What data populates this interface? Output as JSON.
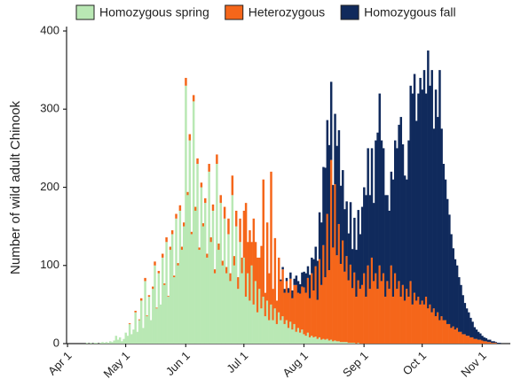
{
  "chart_data": {
    "type": "stacked_bar",
    "y_label": "Number of wild adult Chinook",
    "categories": [
      "Apr 1",
      null,
      null,
      null,
      null,
      null,
      null,
      null,
      null,
      null,
      null,
      null,
      null,
      null,
      null,
      null,
      null,
      null,
      null,
      null,
      null,
      null,
      null,
      null,
      null,
      null,
      null,
      null,
      null,
      null,
      "May 1",
      null,
      null,
      null,
      null,
      null,
      null,
      null,
      null,
      null,
      null,
      null,
      null,
      null,
      null,
      null,
      null,
      null,
      null,
      null,
      null,
      null,
      null,
      null,
      null,
      null,
      null,
      null,
      null,
      null,
      null,
      "Jun 1",
      null,
      null,
      null,
      null,
      null,
      null,
      null,
      null,
      null,
      null,
      null,
      null,
      null,
      null,
      null,
      null,
      null,
      null,
      null,
      null,
      null,
      null,
      null,
      null,
      null,
      null,
      null,
      null,
      null,
      "Jul 1",
      null,
      null,
      null,
      null,
      null,
      null,
      null,
      null,
      null,
      null,
      null,
      null,
      null,
      null,
      null,
      null,
      null,
      null,
      null,
      null,
      null,
      null,
      null,
      null,
      null,
      null,
      null,
      null,
      null,
      null,
      "Aug 1",
      null,
      null,
      null,
      null,
      null,
      null,
      null,
      null,
      null,
      null,
      null,
      null,
      null,
      null,
      null,
      null,
      null,
      null,
      null,
      null,
      null,
      null,
      null,
      null,
      null,
      null,
      null,
      null,
      null,
      null,
      "Sep 1",
      null,
      null,
      null,
      null,
      null,
      null,
      null,
      null,
      null,
      null,
      null,
      null,
      null,
      null,
      null,
      null,
      null,
      null,
      null,
      null,
      null,
      null,
      null,
      null,
      null,
      null,
      null,
      null,
      null,
      "Oct 1",
      null,
      null,
      null,
      null,
      null,
      null,
      null,
      null,
      null,
      null,
      null,
      null,
      null,
      null,
      null,
      null,
      null,
      null,
      null,
      null,
      null,
      null,
      null,
      null,
      null,
      null,
      null,
      null,
      null,
      null,
      "Nov 1",
      null,
      null,
      null,
      null,
      null,
      null,
      null,
      null,
      null,
      null,
      null,
      null,
      null,
      null
    ],
    "series": [
      {
        "name": "Homozygous spring",
        "color": "#b9e8b4",
        "values": [
          0,
          0,
          0,
          0,
          0,
          0,
          0,
          0,
          0,
          0,
          1,
          0,
          1,
          0,
          1,
          1,
          0,
          1,
          2,
          1,
          2,
          1,
          3,
          2,
          4,
          10,
          5,
          8,
          3,
          6,
          14,
          10,
          25,
          12,
          18,
          40,
          15,
          30,
          55,
          20,
          80,
          35,
          60,
          30,
          70,
          100,
          45,
          90,
          50,
          110,
          75,
          130,
          60,
          120,
          140,
          85,
          160,
          100,
          170,
          120,
          150,
          330,
          190,
          260,
          140,
          310,
          170,
          230,
          120,
          200,
          150,
          180,
          110,
          220,
          130,
          170,
          90,
          230,
          120,
          180,
          100,
          160,
          90,
          140,
          80,
          190,
          100,
          150,
          70,
          130,
          90,
          110,
          60,
          90,
          55,
          100,
          50,
          80,
          40,
          70,
          45,
          60,
          35,
          55,
          30,
          50,
          30,
          45,
          25,
          40,
          30,
          35,
          25,
          30,
          20,
          28,
          18,
          25,
          15,
          20,
          14,
          18,
          12,
          10,
          14,
          8,
          10,
          8,
          9,
          6,
          8,
          5,
          6,
          5,
          6,
          4,
          5,
          3,
          4,
          3,
          3,
          2,
          2,
          2,
          2,
          1,
          1,
          1,
          1,
          0,
          1,
          0,
          0,
          0,
          0,
          0,
          0,
          0,
          0,
          0,
          0,
          0,
          0,
          0,
          0,
          0,
          0,
          0,
          0,
          0,
          0,
          0,
          0,
          0,
          0,
          0,
          0,
          0,
          0,
          0,
          0,
          0,
          0,
          0,
          0,
          0,
          0,
          0,
          0,
          0,
          0,
          0,
          0,
          0,
          0,
          0,
          0,
          0,
          0,
          0,
          0,
          0,
          0,
          0,
          0,
          0,
          0,
          0,
          0,
          0,
          0,
          0,
          0,
          0,
          0,
          0,
          0,
          0,
          0,
          0,
          0,
          0,
          0,
          0,
          0,
          0,
          0,
          0,
          0
        ]
      },
      {
        "name": "Heterozygous",
        "color": "#f5661a",
        "values": [
          0,
          0,
          0,
          0,
          0,
          0,
          0,
          0,
          0,
          0,
          0,
          0,
          0,
          0,
          0,
          0,
          0,
          0,
          0,
          0,
          0,
          0,
          0,
          0,
          0,
          0,
          0,
          0,
          0,
          0,
          0,
          0,
          1,
          0,
          0,
          2,
          0,
          1,
          3,
          0,
          4,
          1,
          2,
          0,
          3,
          5,
          1,
          3,
          0,
          5,
          2,
          6,
          1,
          4,
          5,
          2,
          6,
          3,
          7,
          4,
          5,
          10,
          4,
          8,
          3,
          8,
          5,
          7,
          3,
          6,
          4,
          6,
          5,
          10,
          6,
          8,
          5,
          12,
          8,
          10,
          6,
          15,
          8,
          20,
          10,
          25,
          12,
          20,
          15,
          30,
          20,
          60,
          120,
          40,
          90,
          30,
          110,
          50,
          70,
          40,
          80,
          150,
          30,
          100,
          60,
          170,
          40,
          90,
          30,
          70,
          50,
          60,
          40,
          50,
          45,
          55,
          40,
          50,
          60,
          45,
          50,
          55,
          60,
          55,
          70,
          50,
          80,
          60,
          90,
          50,
          100,
          70,
          120,
          80,
          160,
          90,
          230,
          120,
          200,
          110,
          150,
          100,
          130,
          90,
          110,
          80,
          100,
          70,
          90,
          60,
          80,
          70,
          75,
          90,
          60,
          100,
          70,
          110,
          80,
          90,
          70,
          100,
          80,
          90,
          60,
          80,
          70,
          100,
          60,
          90,
          70,
          80,
          60,
          75,
          55,
          70,
          60,
          80,
          50,
          65,
          55,
          60,
          50,
          55,
          50,
          60,
          45,
          50,
          40,
          45,
          35,
          40,
          30,
          35,
          30,
          30,
          25,
          25,
          20,
          22,
          18,
          20,
          15,
          15,
          12,
          12,
          10,
          10,
          8,
          8,
          6,
          6,
          5,
          5,
          4,
          3,
          3,
          2,
          2,
          1,
          1,
          1,
          0,
          0,
          0,
          0,
          0,
          0,
          0
        ]
      },
      {
        "name": "Homozygous fall",
        "color": "#102a5c",
        "values": [
          0,
          0,
          0,
          0,
          0,
          0,
          0,
          0,
          0,
          0,
          0,
          0,
          0,
          0,
          0,
          0,
          0,
          0,
          0,
          0,
          0,
          0,
          0,
          0,
          0,
          0,
          0,
          0,
          0,
          0,
          0,
          0,
          0,
          0,
          0,
          0,
          0,
          0,
          0,
          0,
          0,
          0,
          0,
          0,
          0,
          0,
          0,
          0,
          0,
          0,
          0,
          0,
          0,
          0,
          0,
          0,
          0,
          0,
          0,
          0,
          0,
          0,
          0,
          0,
          0,
          0,
          0,
          0,
          0,
          0,
          0,
          0,
          0,
          0,
          0,
          0,
          0,
          0,
          0,
          0,
          0,
          0,
          0,
          0,
          0,
          0,
          0,
          0,
          0,
          0,
          0,
          0,
          0,
          0,
          0,
          0,
          0,
          0,
          0,
          0,
          0,
          0,
          0,
          0,
          0,
          0,
          0,
          0,
          0,
          0,
          2,
          3,
          5,
          4,
          6,
          8,
          10,
          8,
          12,
          15,
          12,
          18,
          20,
          25,
          15,
          30,
          20,
          40,
          25,
          50,
          60,
          80,
          100,
          140,
          120,
          160,
          100,
          80,
          90,
          140,
          120,
          100,
          90,
          80,
          70,
          60,
          80,
          50,
          70,
          60,
          90,
          70,
          100,
          110,
          130,
          150,
          120,
          140,
          100,
          170,
          200,
          220,
          180,
          160,
          130,
          110,
          100,
          120,
          150,
          170,
          180,
          200,
          230,
          180,
          160,
          140,
          200,
          250,
          270,
          280,
          230,
          260,
          290,
          270,
          300,
          260,
          330,
          280,
          310,
          230,
          290,
          250,
          320,
          240,
          200,
          180,
          160,
          140,
          120,
          100,
          90,
          80,
          70,
          60,
          50,
          40,
          35,
          30,
          25,
          20,
          15,
          12,
          10,
          8,
          6,
          5,
          4,
          3,
          3,
          2,
          2,
          1,
          1,
          1,
          0,
          0,
          0,
          0,
          0
        ]
      }
    ],
    "ylim": [
      0,
      400
    ],
    "yticks": [
      0,
      100,
      200,
      300,
      400
    ],
    "grid": false,
    "legend": "top"
  }
}
